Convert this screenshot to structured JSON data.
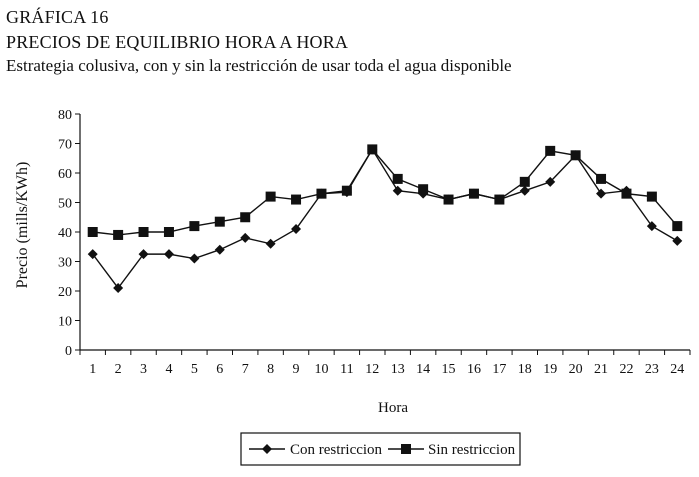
{
  "header": {
    "figure_label": "GRÁFICA 16",
    "title": "PRECIOS DE EQUILIBRIO HORA A HORA",
    "subtitle": "Estrategia colusiva, con y sin la restricción de usar toda el agua disponible"
  },
  "chart_data": {
    "type": "line",
    "title": "PRECIOS DE EQUILIBRIO HORA A HORA",
    "subtitle": "Estrategia colusiva, con y sin la restricción de usar toda el agua disponible",
    "xlabel": "Hora",
    "ylabel": "Precio (mills/KWh)",
    "x": [
      1,
      2,
      3,
      4,
      5,
      6,
      7,
      8,
      9,
      10,
      11,
      12,
      13,
      14,
      15,
      16,
      17,
      18,
      19,
      20,
      21,
      22,
      23,
      24
    ],
    "x_tick_labels": [
      "1",
      "2",
      "3",
      "4",
      "5",
      "6",
      "7",
      "8",
      "9",
      "10",
      "11",
      "12",
      "13",
      "14",
      "15",
      "16",
      "17",
      "18",
      "19",
      "20",
      "21",
      "22",
      "23",
      "24"
    ],
    "ylim": [
      0,
      80
    ],
    "y_ticks": [
      0,
      10,
      20,
      30,
      40,
      50,
      60,
      70,
      80
    ],
    "grid": false,
    "legend_position": "bottom-center",
    "series": [
      {
        "name": "Con restriccion",
        "marker": "diamond",
        "color": "#111111",
        "values": [
          32.5,
          21,
          32.5,
          32.5,
          31,
          34,
          38,
          36,
          41,
          53,
          53.5,
          68,
          54,
          53,
          51,
          53,
          51,
          54,
          57,
          66,
          53,
          54,
          42,
          37
        ]
      },
      {
        "name": "Sin restriccion",
        "marker": "square",
        "color": "#111111",
        "values": [
          40,
          39,
          40,
          40,
          42,
          43.5,
          45,
          52,
          51,
          53,
          54,
          68,
          58,
          54.5,
          51,
          53,
          51,
          57,
          67.5,
          66,
          58,
          53,
          52,
          42
        ]
      }
    ]
  }
}
